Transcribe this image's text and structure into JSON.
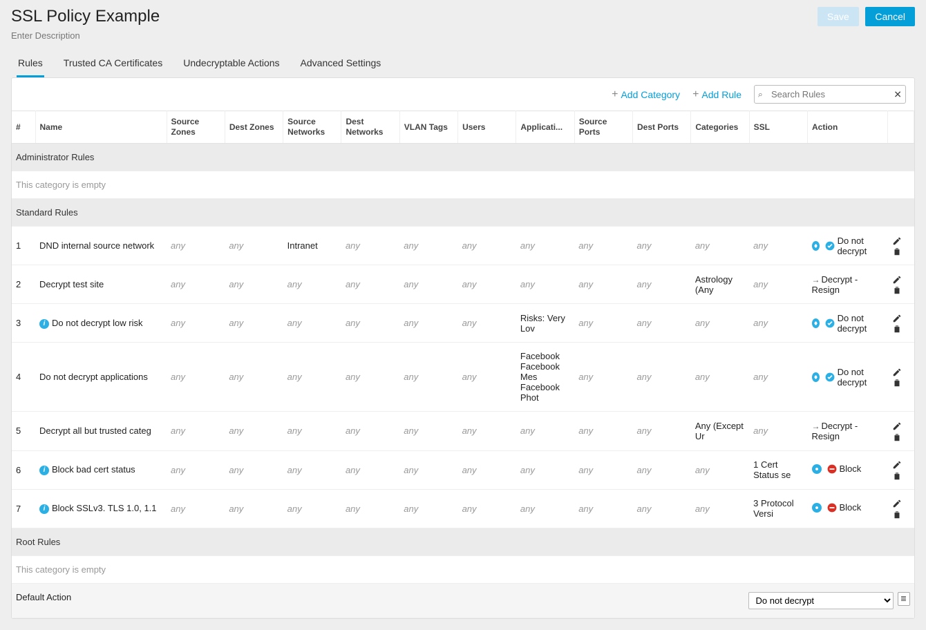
{
  "header": {
    "title": "SSL Policy Example",
    "description_placeholder": "Enter Description",
    "save_label": "Save",
    "cancel_label": "Cancel"
  },
  "tabs": [
    {
      "label": "Rules",
      "active": true
    },
    {
      "label": "Trusted CA Certificates",
      "active": false
    },
    {
      "label": "Undecryptable Actions",
      "active": false
    },
    {
      "label": "Advanced Settings",
      "active": false
    }
  ],
  "toolbar": {
    "add_category_label": "Add Category",
    "add_rule_label": "Add Rule",
    "search_placeholder": "Search Rules"
  },
  "columns": {
    "num": "#",
    "name": "Name",
    "src_zones": "Source Zones",
    "dst_zones": "Dest Zones",
    "src_nets": "Source Networks",
    "dst_nets": "Dest Networks",
    "vlan": "VLAN Tags",
    "users": "Users",
    "apps": "Applicati...",
    "src_ports": "Source Ports",
    "dst_ports": "Dest Ports",
    "categories": "Categories",
    "ssl": "SSL",
    "action": "Action"
  },
  "any_label": "any",
  "categories_list": [
    {
      "name": "Administrator Rules",
      "empty": true
    },
    {
      "name": "Standard Rules",
      "empty": false
    },
    {
      "name": "Root Rules",
      "empty": true
    }
  ],
  "empty_text": "This category is empty",
  "rules": [
    {
      "num": "1",
      "info": false,
      "name": "DND internal source network",
      "src_zones": "any",
      "dst_zones": "any",
      "src_nets": "Intranet",
      "dst_nets": "any",
      "vlan": "any",
      "users": "any",
      "apps": "any",
      "src_ports": "any",
      "dst_ports": "any",
      "categories": "any",
      "ssl": "any",
      "action_type": "dnd",
      "action_label": "Do not decrypt"
    },
    {
      "num": "2",
      "info": false,
      "name": "Decrypt test site",
      "src_zones": "any",
      "dst_zones": "any",
      "src_nets": "any",
      "dst_nets": "any",
      "vlan": "any",
      "users": "any",
      "apps": "any",
      "src_ports": "any",
      "dst_ports": "any",
      "categories": "Astrology (Any",
      "ssl": "any",
      "action_type": "resign",
      "action_label": "Decrypt - Resign"
    },
    {
      "num": "3",
      "info": true,
      "name": "Do not decrypt low risk",
      "src_zones": "any",
      "dst_zones": "any",
      "src_nets": "any",
      "dst_nets": "any",
      "vlan": "any",
      "users": "any",
      "apps": "Risks: Very Lov",
      "src_ports": "any",
      "dst_ports": "any",
      "categories": "any",
      "ssl": "any",
      "action_type": "dnd",
      "action_label": "Do not decrypt"
    },
    {
      "num": "4",
      "info": false,
      "name": "Do not decrypt applications",
      "src_zones": "any",
      "dst_zones": "any",
      "src_nets": "any",
      "dst_nets": "any",
      "vlan": "any",
      "users": "any",
      "apps": "Facebook\nFacebook Mes\nFacebook Phot",
      "src_ports": "any",
      "dst_ports": "any",
      "categories": "any",
      "ssl": "any",
      "action_type": "dnd",
      "action_label": "Do not decrypt"
    },
    {
      "num": "5",
      "info": false,
      "name": "Decrypt all but trusted categ",
      "src_zones": "any",
      "dst_zones": "any",
      "src_nets": "any",
      "dst_nets": "any",
      "vlan": "any",
      "users": "any",
      "apps": "any",
      "src_ports": "any",
      "dst_ports": "any",
      "categories": "Any (Except Ur",
      "ssl": "any",
      "action_type": "resign",
      "action_label": "Decrypt - Resign"
    },
    {
      "num": "6",
      "info": true,
      "name": "Block bad cert status",
      "src_zones": "any",
      "dst_zones": "any",
      "src_nets": "any",
      "dst_nets": "any",
      "vlan": "any",
      "users": "any",
      "apps": "any",
      "src_ports": "any",
      "dst_ports": "any",
      "categories": "any",
      "ssl": "1 Cert Status se",
      "action_type": "block",
      "action_label": "Block"
    },
    {
      "num": "7",
      "info": true,
      "name": "Block SSLv3. TLS 1.0, 1.1",
      "src_zones": "any",
      "dst_zones": "any",
      "src_nets": "any",
      "dst_nets": "any",
      "vlan": "any",
      "users": "any",
      "apps": "any",
      "src_ports": "any",
      "dst_ports": "any",
      "categories": "any",
      "ssl": "3 Protocol Versi",
      "action_type": "block",
      "action_label": "Block"
    }
  ],
  "default_action": {
    "label": "Default Action",
    "selected": "Do not decrypt"
  },
  "colors": {
    "accent": "#049fd9",
    "save_bg": "#cbe5f5",
    "block_icon": "#d93025",
    "dnd_icon": "#2bb0e6",
    "page_bg": "#eeeeee"
  }
}
